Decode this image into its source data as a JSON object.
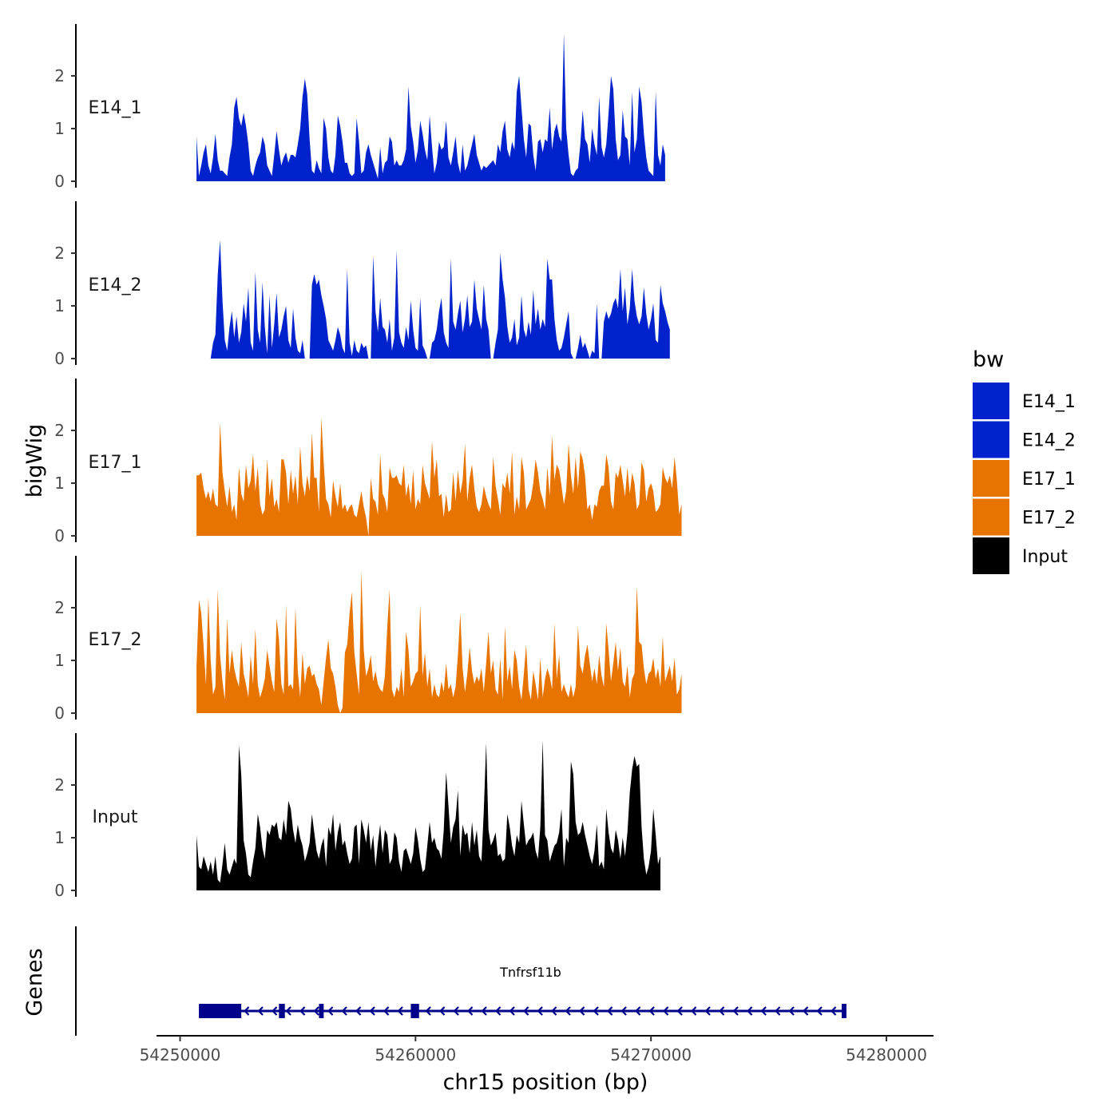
{
  "chart_data": {
    "type": "area",
    "chromosome": "chr15",
    "xlabel": "chr15 position (bp)",
    "ylabel": "bigWig",
    "genes_label": "Genes",
    "xlim": [
      54249000,
      54282000
    ],
    "ylim": [
      0,
      3
    ],
    "x_ticks": [
      54250000,
      54260000,
      54270000,
      54280000
    ],
    "x_tick_labels": [
      "54250000",
      "54260000",
      "54270000",
      "54280000"
    ],
    "y_ticks": [
      0,
      1,
      2
    ],
    "y_tick_labels": [
      "0",
      "1",
      "2"
    ],
    "legend": {
      "title": "bw",
      "entries": [
        {
          "label": "E14_1",
          "color": "#0022CC"
        },
        {
          "label": "E14_2",
          "color": "#0022CC"
        },
        {
          "label": "E17_1",
          "color": "#E87400"
        },
        {
          "label": "E17_2",
          "color": "#E87400"
        },
        {
          "label": "Input",
          "color": "#000000"
        }
      ]
    },
    "x_start": 54250700,
    "x_step": 100,
    "series": [
      {
        "name": "E14_1",
        "color": "#0022CC",
        "values": [
          0.85,
          0.1,
          0.3,
          0.55,
          0.7,
          0.3,
          0.15,
          0.45,
          0.9,
          0.4,
          0.2,
          0.2,
          0.15,
          0.1,
          0.45,
          0.7,
          1.4,
          1.6,
          1.2,
          1.05,
          1.3,
          1.05,
          0.7,
          0.2,
          0.1,
          0.3,
          0.45,
          0.55,
          0.85,
          0.7,
          0.3,
          0.2,
          0.1,
          0.5,
          0.95,
          0.6,
          0.3,
          0.45,
          0.55,
          0.35,
          0.5,
          0.5,
          0.45,
          0.7,
          1.0,
          1.6,
          1.95,
          1.65,
          0.8,
          0.2,
          0.15,
          0.4,
          0.25,
          0.15,
          1.2,
          1.0,
          0.45,
          0.2,
          0.15,
          0.5,
          1.25,
          1.05,
          0.75,
          0.35,
          0.35,
          0.15,
          0.1,
          0.15,
          1.2,
          0.75,
          0.15,
          0.2,
          0.55,
          0.7,
          0.5,
          0.35,
          0.2,
          0.05,
          0.65,
          0.15,
          0.35,
          0.4,
          0.85,
          0.75,
          0.3,
          0.4,
          0.3,
          0.3,
          0.4,
          0.6,
          1.8,
          1.05,
          0.75,
          0.35,
          0.6,
          1.15,
          0.9,
          0.6,
          0.4,
          1.25,
          0.65,
          0.15,
          0.35,
          0.75,
          0.6,
          0.65,
          1.15,
          0.45,
          0.3,
          0.55,
          0.85,
          0.35,
          0.15,
          0.7,
          0.2,
          0.3,
          0.5,
          0.7,
          0.9,
          0.5,
          0.35,
          0.2,
          0.3,
          0.25,
          0.3,
          0.35,
          0.4,
          0.3,
          0.7,
          0.55,
          0.95,
          1.15,
          0.6,
          0.45,
          0.75,
          0.6,
          1.7,
          2.0,
          1.4,
          0.8,
          0.45,
          1.1,
          1.05,
          0.5,
          0.2,
          0.75,
          0.8,
          0.55,
          0.8,
          0.75,
          1.4,
          0.6,
          0.95,
          1.1,
          0.85,
          0.75,
          2.8,
          1.0,
          0.5,
          0.15,
          0.1,
          0.2,
          0.25,
          0.7,
          1.35,
          0.8,
          0.7,
          0.35,
          1.0,
          0.7,
          0.5,
          1.6,
          0.65,
          0.45,
          0.7,
          1.3,
          2.0,
          1.75,
          0.8,
          0.4,
          0.5,
          1.35,
          0.85,
          0.8,
          0.3,
          1.7,
          0.55,
          0.8,
          1.8,
          1.5,
          0.9,
          0.45,
          0.2,
          0.15,
          0.1,
          1.7,
          0.5,
          0.3,
          0.7,
          0.5
        ]
      },
      {
        "name": "E14_2",
        "color": "#0022CC",
        "values": [
          0.0,
          0.0,
          0.0,
          0.0,
          0.0,
          0.0,
          0.0,
          0.3,
          0.45,
          1.6,
          2.25,
          1.1,
          0.35,
          0.15,
          0.6,
          0.9,
          0.4,
          0.8,
          0.3,
          0.5,
          1.05,
          0.7,
          1.35,
          0.3,
          0.15,
          1.65,
          0.55,
          0.3,
          1.45,
          0.6,
          0.1,
          1.2,
          0.2,
          0.65,
          1.25,
          0.4,
          0.55,
          0.8,
          1.0,
          0.35,
          0.2,
          0.95,
          0.4,
          0.15,
          0.1,
          0.35,
          0.0,
          0.0,
          0.0,
          1.4,
          1.6,
          1.4,
          1.5,
          1.2,
          1.0,
          0.75,
          0.35,
          0.25,
          0.15,
          0.35,
          0.6,
          0.45,
          0.2,
          0.1,
          1.7,
          0.3,
          0.05,
          0.35,
          0.15,
          0.1,
          0.3,
          0.2,
          0.25,
          0.0,
          0.0,
          1.95,
          0.9,
          0.5,
          1.15,
          0.6,
          0.55,
          0.3,
          0.75,
          0.15,
          0.4,
          2.05,
          0.5,
          0.3,
          0.2,
          0.6,
          0.35,
          1.1,
          0.55,
          0.2,
          0.15,
          1.15,
          0.25,
          0.15,
          0.0,
          0.0,
          0.3,
          0.35,
          0.55,
          0.9,
          1.15,
          0.5,
          0.3,
          0.2,
          1.9,
          0.7,
          0.55,
          0.85,
          1.1,
          0.5,
          0.75,
          1.2,
          0.6,
          0.7,
          1.5,
          0.95,
          0.75,
          0.55,
          1.4,
          0.75,
          0.55,
          0.0,
          0.0,
          0.3,
          0.55,
          2.0,
          1.5,
          1.15,
          0.6,
          0.3,
          0.4,
          0.75,
          0.25,
          0.4,
          1.2,
          0.55,
          0.4,
          0.7,
          0.45,
          1.3,
          0.65,
          0.95,
          0.55,
          0.75,
          0.6,
          1.9,
          1.5,
          1.5,
          0.75,
          0.35,
          0.15,
          0.2,
          0.4,
          0.65,
          0.9,
          0.1,
          0.0,
          0.0,
          0.2,
          0.45,
          0.2,
          0.3,
          0.15,
          0.0,
          0.15,
          0.1,
          1.05,
          0.0,
          0.0,
          0.7,
          0.9,
          0.75,
          0.85,
          1.05,
          1.15,
          0.95,
          1.7,
          0.9,
          1.35,
          0.65,
          0.95,
          1.7,
          1.1,
          0.8,
          0.65,
          0.8,
          1.35,
          0.85,
          0.55,
          0.75,
          1.05,
          0.35,
          0.3,
          1.4,
          1.05,
          0.9,
          0.7,
          0.55
        ]
      },
      {
        "name": "E17_1",
        "color": "#E87400",
        "values": [
          1.15,
          1.15,
          1.2,
          0.9,
          0.7,
          0.85,
          0.65,
          0.9,
          0.6,
          0.55,
          2.15,
          1.2,
          0.85,
          0.55,
          0.95,
          0.45,
          0.6,
          0.3,
          1.3,
          0.8,
          0.65,
          1.35,
          0.9,
          1.05,
          1.55,
          0.85,
          1.3,
          0.6,
          0.4,
          0.5,
          1.45,
          0.75,
          1.1,
          0.55,
          0.7,
          0.45,
          1.45,
          1.45,
          1.2,
          0.6,
          1.25,
          0.8,
          1.15,
          0.6,
          1.7,
          1.0,
          0.75,
          1.15,
          0.85,
          1.95,
          1.1,
          1.1,
          0.45,
          2.25,
          1.4,
          0.7,
          0.6,
          0.35,
          1.05,
          0.75,
          0.55,
          1.0,
          0.5,
          0.6,
          0.45,
          0.55,
          0.6,
          0.4,
          0.35,
          0.6,
          0.85,
          0.55,
          0.35,
          0.0,
          1.1,
          0.7,
          0.65,
          0.4,
          1.55,
          0.8,
          0.7,
          0.45,
          1.3,
          1.1,
          1.1,
          1.15,
          1.0,
          0.95,
          1.35,
          0.75,
          1.0,
          0.6,
          1.25,
          0.5,
          0.7,
          0.6,
          1.35,
          1.0,
          0.85,
          0.7,
          1.8,
          1.1,
          1.45,
          0.75,
          0.8,
          0.35,
          0.8,
          0.45,
          0.5,
          1.2,
          0.65,
          1.25,
          0.8,
          1.05,
          1.75,
          0.65,
          1.1,
          1.35,
          0.9,
          0.55,
          0.45,
          0.6,
          0.95,
          0.75,
          0.6,
          0.5,
          1.5,
          0.95,
          0.7,
          0.4,
          1.0,
          0.9,
          1.2,
          0.8,
          1.6,
          0.4,
          0.75,
          0.5,
          1.5,
          1.2,
          0.5,
          0.6,
          0.7,
          1.0,
          1.45,
          1.2,
          0.85,
          0.7,
          0.5,
          1.3,
          0.75,
          1.9,
          1.05,
          1.35,
          1.25,
          0.95,
          0.6,
          0.85,
          1.75,
          1.15,
          0.8,
          1.5,
          0.9,
          1.6,
          1.45,
          1.15,
          0.5,
          0.6,
          0.3,
          0.6,
          0.55,
          0.85,
          0.95,
          0.95,
          1.55,
          1.3,
          0.65,
          0.5,
          1.2,
          1.1,
          1.35,
          1.05,
          0.75,
          1.3,
          0.8,
          1.2,
          1.0,
          0.5,
          0.6,
          1.4,
          1.25,
          0.65,
          0.9,
          1.0,
          0.85,
          0.45,
          0.5,
          0.6,
          1.3,
          1.1,
          1.0,
          1.15,
          0.9,
          1.5,
          1.05,
          0.4,
          0.6
        ]
      },
      {
        "name": "E17_2",
        "color": "#E87400",
        "values": [
          0.9,
          2.15,
          1.9,
          1.25,
          0.55,
          2.2,
          1.0,
          0.35,
          0.5,
          2.35,
          1.1,
          0.6,
          0.25,
          1.8,
          0.75,
          1.2,
          0.85,
          0.65,
          0.5,
          1.35,
          0.75,
          0.55,
          0.3,
          1.1,
          0.55,
          1.6,
          0.55,
          0.3,
          0.45,
          0.65,
          1.2,
          0.9,
          0.6,
          0.4,
          1.8,
          1.4,
          0.55,
          0.35,
          2.05,
          0.5,
          0.55,
          0.45,
          2.0,
          0.8,
          0.3,
          1.15,
          0.55,
          0.85,
          0.9,
          0.7,
          0.75,
          0.55,
          0.45,
          0.15,
          0.6,
          1.05,
          1.4,
          0.85,
          0.75,
          0.5,
          0.15,
          0.0,
          0.1,
          1.15,
          1.3,
          1.9,
          2.3,
          1.15,
          0.75,
          0.35,
          2.7,
          1.2,
          0.7,
          0.85,
          1.1,
          0.6,
          0.8,
          0.55,
          0.45,
          0.4,
          0.7,
          1.65,
          2.35,
          0.45,
          0.3,
          0.5,
          0.4,
          0.85,
          0.3,
          1.55,
          1.2,
          0.5,
          0.6,
          0.75,
          0.8,
          2.05,
          0.7,
          1.15,
          0.5,
          0.85,
          0.3,
          0.55,
          0.35,
          0.3,
          0.6,
          0.4,
          0.95,
          0.45,
          0.55,
          0.3,
          0.5,
          1.1,
          1.9,
          0.85,
          0.4,
          0.75,
          1.25,
          0.8,
          0.55,
          0.7,
          0.6,
          0.85,
          0.4,
          0.95,
          1.55,
          0.75,
          1.0,
          0.45,
          0.35,
          1.05,
          0.25,
          1.65,
          0.6,
          0.9,
          0.45,
          1.2,
          1.0,
          0.5,
          0.25,
          0.75,
          1.3,
          0.45,
          0.25,
          0.8,
          0.55,
          0.25,
          1.05,
          0.3,
          0.65,
          0.85,
          0.7,
          0.45,
          1.7,
          0.65,
          1.1,
          0.4,
          0.55,
          0.4,
          0.3,
          0.55,
          0.3,
          0.5,
          1.65,
          0.9,
          0.75,
          1.1,
          1.3,
          0.95,
          0.6,
          0.85,
          0.55,
          1.1,
          0.7,
          0.5,
          1.7,
          1.2,
          0.6,
          0.95,
          1.35,
          0.8,
          1.25,
          0.6,
          0.5,
          0.9,
          0.3,
          0.65,
          0.75,
          2.4,
          1.35,
          1.3,
          0.85,
          0.55,
          0.75,
          0.8,
          1.05,
          0.65,
          0.85,
          0.5,
          1.45,
          0.6,
          0.75,
          0.9,
          0.6,
          1.05,
          0.35,
          0.45,
          0.75
        ]
      },
      {
        "name": "Input",
        "color": "#000000",
        "values": [
          1.05,
          0.45,
          0.4,
          0.65,
          0.5,
          0.35,
          0.55,
          0.3,
          0.65,
          0.2,
          0.15,
          0.5,
          0.9,
          0.4,
          0.3,
          0.45,
          0.6,
          0.5,
          2.75,
          2.2,
          0.95,
          0.7,
          0.3,
          0.25,
          0.55,
          0.8,
          1.45,
          1.2,
          0.8,
          0.6,
          1.15,
          1.05,
          1.25,
          1.2,
          1.3,
          1.0,
          0.95,
          1.35,
          1.05,
          1.7,
          1.55,
          1.15,
          0.9,
          1.25,
          1.0,
          0.85,
          0.55,
          0.7,
          0.9,
          1.45,
          1.1,
          0.75,
          0.6,
          0.85,
          1.0,
          0.45,
          1.2,
          1.05,
          1.45,
          0.75,
          1.1,
          1.3,
          0.85,
          0.95,
          0.7,
          0.5,
          0.6,
          1.2,
          1.25,
          0.5,
          1.35,
          1.15,
          0.9,
          1.3,
          0.75,
          1.05,
          0.45,
          0.9,
          1.25,
          0.7,
          1.15,
          1.05,
          0.5,
          0.6,
          1.1,
          1.0,
          0.55,
          0.35,
          0.75,
          0.8,
          0.65,
          0.5,
          0.7,
          1.2,
          0.95,
          0.6,
          0.35,
          0.4,
          0.85,
          1.3,
          0.9,
          1.0,
          0.8,
          0.75,
          0.6,
          1.15,
          2.25,
          1.6,
          0.9,
          1.2,
          1.35,
          1.9,
          0.65,
          1.25,
          1.05,
          1.1,
          0.7,
          1.3,
          0.85,
          1.15,
          0.65,
          0.55,
          1.5,
          2.8,
          1.15,
          0.85,
          0.95,
          1.1,
          0.65,
          0.7,
          0.55,
          0.6,
          1.45,
          1.2,
          0.85,
          0.65,
          1.05,
          0.9,
          1.7,
          1.25,
          0.85,
          0.95,
          1.0,
          1.1,
          0.75,
          0.6,
          1.2,
          2.85,
          1.05,
          0.95,
          0.55,
          0.7,
          0.85,
          0.9,
          1.1,
          1.55,
          0.45,
          1.0,
          0.9,
          2.45,
          2.2,
          1.3,
          1.05,
          1.1,
          1.3,
          1.05,
          0.85,
          0.65,
          0.5,
          0.75,
          1.25,
          0.45,
          0.55,
          0.4,
          1.55,
          1.1,
          0.8,
          0.7,
          1.15,
          0.95,
          0.6,
          1.0,
          0.65,
          1.1,
          1.85,
          2.3,
          2.55,
          2.35,
          2.4,
          1.2,
          0.6,
          0.3,
          0.45,
          0.75,
          1.55,
          1.05,
          0.5,
          0.65
        ]
      }
    ],
    "gene": {
      "name": "Tnfrsf11b",
      "strand": "-",
      "start": 54250800,
      "end": 54278300,
      "exons": [
        [
          54250800,
          54252600
        ],
        [
          54254200,
          54254450
        ],
        [
          54255900,
          54256100
        ],
        [
          54259800,
          54260150
        ],
        [
          54278100,
          54278300
        ]
      ]
    }
  }
}
